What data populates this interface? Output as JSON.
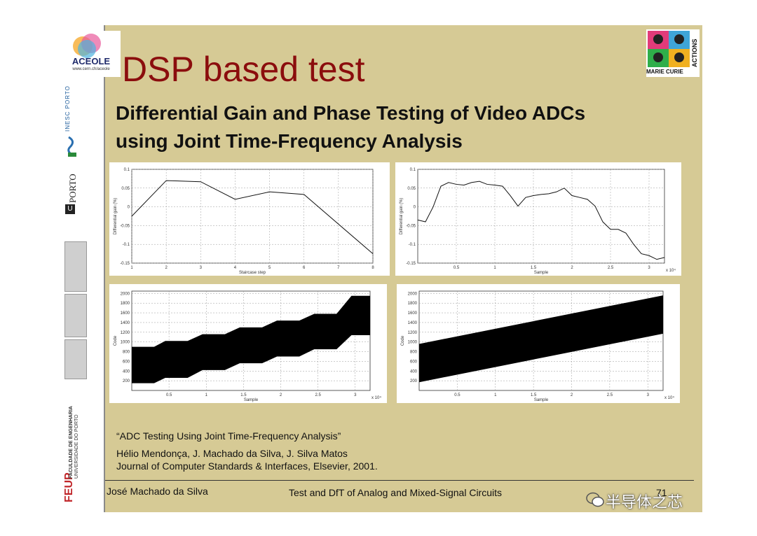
{
  "sidebar": {
    "aceole": "ACEOLE",
    "aceole_url": "www.cern.ch/aceole",
    "inesc": "INESC PORTO",
    "uporto_u": "U",
    "uporto": "PORTO",
    "feup": "FEUP",
    "feup_line1": "FACULDADE DE ENGENHARIA",
    "feup_line2": "UNIVERSIDADE DO PORTO"
  },
  "marie_curie": {
    "line1": "MARIE CURIE",
    "line2": "ACTIONS"
  },
  "slide": {
    "title": "DSP based test",
    "subtitle_line1": "Differential Gain and Phase Testing of Video ADCs",
    "subtitle_line2": "using Joint Time-Frequency Analysis"
  },
  "reference": {
    "paper": "“ADC Testing Using Joint Time-Frequency Analysis”",
    "authors": "Hélio Mendonça, J. Machado da Silva, J. Silva Matos",
    "journal": "Journal of Computer Standards & Interfaces, Elsevier, 2001."
  },
  "footer": {
    "author": "José Machado da Silva",
    "course": "Test and DfT of Analog and Mixed-Signal Circuits",
    "page": "71"
  },
  "watermark": "半导体之芯",
  "chart_data": [
    {
      "type": "line",
      "xlabel": "Staircase step",
      "ylabel": "Differential gain (%)",
      "xlim": [
        1,
        8
      ],
      "ylim": [
        -0.15,
        0.1
      ],
      "xticks": [
        "1",
        "2",
        "3",
        "4",
        "5",
        "6",
        "7",
        "8"
      ],
      "yticks": [
        "-0.15",
        "-0.1",
        "-0.05",
        "0",
        "0.05",
        "0.1"
      ],
      "x": [
        1,
        2,
        3,
        4,
        5,
        6,
        8
      ],
      "y": [
        -0.025,
        0.07,
        0.067,
        0.02,
        0.04,
        0.033,
        -0.125
      ]
    },
    {
      "type": "line",
      "xlabel": "Sample",
      "ylabel": "Differential gain (%)",
      "xlim": [
        0,
        3.2
      ],
      "ylim": [
        -0.15,
        0.1
      ],
      "xticks": [
        "0.5",
        "1",
        "1.5",
        "2",
        "2.5",
        "3"
      ],
      "yticks": [
        "-0.15",
        "-0.1",
        "-0.05",
        "0",
        "0.05",
        "0.1"
      ],
      "x_multiplier": "x 10⁴",
      "x": [
        0,
        0.1,
        0.2,
        0.3,
        0.4,
        0.5,
        0.6,
        0.7,
        0.8,
        0.9,
        1.0,
        1.1,
        1.2,
        1.3,
        1.4,
        1.5,
        1.6,
        1.7,
        1.8,
        1.9,
        2.0,
        2.1,
        2.2,
        2.3,
        2.4,
        2.5,
        2.6,
        2.7,
        2.8,
        2.9,
        3.0,
        3.1,
        3.2
      ],
      "y": [
        -0.035,
        -0.04,
        0.0,
        0.055,
        0.065,
        0.06,
        0.058,
        0.065,
        0.068,
        0.06,
        0.058,
        0.055,
        0.03,
        0.002,
        0.025,
        0.03,
        0.033,
        0.035,
        0.04,
        0.05,
        0.03,
        0.025,
        0.02,
        0.002,
        -0.04,
        -0.06,
        -0.06,
        -0.07,
        -0.1,
        -0.125,
        -0.13,
        -0.14,
        -0.135
      ]
    },
    {
      "type": "area",
      "xlabel": "Sample",
      "ylabel": "Code",
      "xlim": [
        0,
        3.2
      ],
      "ylim": [
        0,
        2048
      ],
      "xticks": [
        "0.5",
        "1",
        "1.5",
        "2",
        "2.5",
        "3"
      ],
      "yticks": [
        "200",
        "400",
        "600",
        "800",
        "1000",
        "1200",
        "1400",
        "1600",
        "1800",
        "2000"
      ],
      "x_multiplier": "x 10⁴",
      "x": [
        0,
        0.3,
        0.45,
        0.75,
        0.95,
        1.25,
        1.45,
        1.75,
        1.95,
        2.25,
        2.45,
        2.75,
        2.95,
        3.2
      ],
      "upper": [
        900,
        900,
        1020,
        1020,
        1160,
        1160,
        1300,
        1300,
        1440,
        1440,
        1580,
        1580,
        1950,
        1950
      ],
      "lower": [
        150,
        150,
        260,
        260,
        420,
        420,
        560,
        560,
        700,
        700,
        850,
        850,
        1140,
        1140
      ]
    },
    {
      "type": "area",
      "xlabel": "Sample",
      "ylabel": "Code",
      "xlim": [
        0,
        3.2
      ],
      "ylim": [
        0,
        2048
      ],
      "xticks": [
        "0.5",
        "1",
        "1.5",
        "2",
        "2.5",
        "3"
      ],
      "yticks": [
        "200",
        "400",
        "600",
        "800",
        "1000",
        "1200",
        "1400",
        "1600",
        "1800",
        "2000"
      ],
      "x_multiplier": "x 10⁴",
      "x": [
        0,
        3.2
      ],
      "upper": [
        960,
        1960
      ],
      "lower": [
        170,
        1170
      ]
    }
  ]
}
